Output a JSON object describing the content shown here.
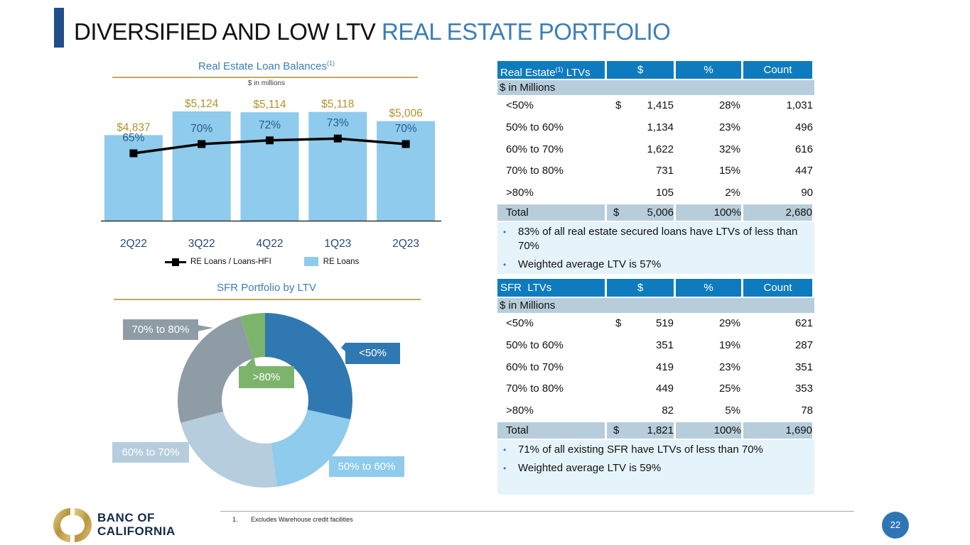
{
  "title": {
    "dark_part": "DIVERSIFIED AND LOW LTV",
    "accent_part": "REAL ESTATE PORTFOLIO"
  },
  "colors": {
    "title_accent": "#3c7db8",
    "gold": "#c4a85a",
    "bar": "#8ecbec",
    "line": "#000000",
    "header_blue": "#0f7bbf",
    "total_grey": "#b8cddb",
    "note_bg": "#e5f3fb",
    "donut": [
      "#2f78b2",
      "#8ecbec",
      "#b5cddc",
      "#8e9ca5",
      "#7db46c"
    ]
  },
  "chart_data": [
    {
      "type": "bar",
      "title": "Real Estate Loan Balances",
      "title_superscript": "(1)",
      "subtitle": "$ in millions",
      "categories": [
        "2Q22",
        "3Q22",
        "4Q22",
        "1Q23",
        "2Q23"
      ],
      "series": [
        {
          "name": "RE Loans",
          "kind": "bar",
          "values": [
            4837,
            5124,
            5114,
            5118,
            5006
          ],
          "labels": [
            "$4,837",
            "$5,124",
            "$5,114",
            "$5,118",
            "$5,006"
          ]
        },
        {
          "name": "RE Loans / Loans-HFI",
          "kind": "line",
          "values": [
            65,
            70,
            72,
            73,
            70
          ],
          "labels": [
            "65%",
            "70%",
            "72%",
            "73%",
            "70%"
          ]
        }
      ],
      "legend": [
        "RE Loans / Loans-HFI",
        "RE Loans"
      ],
      "legend_position": "bottom",
      "grid": false
    },
    {
      "type": "pie",
      "subtype": "donut",
      "title": "SFR Portfolio by LTV",
      "categories": [
        "<50%",
        "50% to 60%",
        "60% to 70%",
        "70% to 80%",
        ">80%"
      ],
      "values": [
        519,
        351,
        419,
        449,
        82
      ],
      "percent": [
        29,
        19,
        23,
        25,
        5
      ]
    }
  ],
  "re_table": {
    "header": {
      "c0_main": "Real Estate",
      "c0_sup": "(1)",
      "c0_tail": " LTVs",
      "c1": "$",
      "c2": "%",
      "c3": "Count"
    },
    "units": "$ in Millions",
    "rows": [
      {
        "label": "<50%",
        "currency": "$",
        "amount": "1,415",
        "pct": "28%",
        "count": "1,031"
      },
      {
        "label": "50% to 60%",
        "currency": "",
        "amount": "1,134",
        "pct": "23%",
        "count": "496"
      },
      {
        "label": "60% to 70%",
        "currency": "",
        "amount": "1,622",
        "pct": "32%",
        "count": "616"
      },
      {
        "label": "70% to 80%",
        "currency": "",
        "amount": "731",
        "pct": "15%",
        "count": "447"
      },
      {
        "label": ">80%",
        "currency": "",
        "amount": "105",
        "pct": "2%",
        "count": "90"
      }
    ],
    "total": {
      "label": "Total",
      "currency": "$",
      "amount": "5,006",
      "pct": "100%",
      "count": "2,680"
    },
    "notes": [
      "83% of all real estate secured loans have LTVs of less than 70%",
      "Weighted average LTV is 57%"
    ]
  },
  "sfr_table": {
    "header": {
      "c0": "SFR  LTVs",
      "c1": "$",
      "c2": "%",
      "c3": "Count"
    },
    "units": "$ in Millions",
    "rows": [
      {
        "label": "<50%",
        "currency": "$",
        "amount": "519",
        "pct": "29%",
        "count": "621"
      },
      {
        "label": "50% to 60%",
        "currency": "",
        "amount": "351",
        "pct": "19%",
        "count": "287"
      },
      {
        "label": "60% to 70%",
        "currency": "",
        "amount": "419",
        "pct": "23%",
        "count": "351"
      },
      {
        "label": "70% to 80%",
        "currency": "",
        "amount": "449",
        "pct": "25%",
        "count": "353"
      },
      {
        "label": ">80%",
        "currency": "",
        "amount": "82",
        "pct": "5%",
        "count": "78"
      }
    ],
    "total": {
      "label": "Total",
      "currency": "$",
      "amount": "1,821",
      "pct": "100%",
      "count": "1,690"
    },
    "notes": [
      "71% of all existing SFR have LTVs of less than 70%",
      "Weighted average LTV is 59%"
    ]
  },
  "footer": {
    "logo_line1": "BANC OF",
    "logo_line2": "CALIFORNIA",
    "footnote_num": "1.",
    "footnote_text": "Excludes Warehouse credit facilities",
    "page_number": "22"
  }
}
